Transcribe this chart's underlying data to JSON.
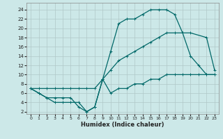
{
  "xlabel": "Humidex (Indice chaleur)",
  "bg_color": "#cce8e8",
  "grid_color": "#b0c8c8",
  "line_color": "#006868",
  "xlim": [
    -0.5,
    23.5
  ],
  "ylim": [
    1.5,
    25.5
  ],
  "xticks": [
    0,
    1,
    2,
    3,
    4,
    5,
    6,
    7,
    8,
    9,
    10,
    11,
    12,
    13,
    14,
    15,
    16,
    17,
    18,
    19,
    20,
    21,
    22,
    23
  ],
  "yticks": [
    2,
    4,
    6,
    8,
    10,
    12,
    14,
    16,
    18,
    20,
    22,
    24
  ],
  "line1_x": [
    0,
    1,
    2,
    3,
    4,
    5,
    6,
    7,
    8,
    9,
    10,
    11,
    12,
    13,
    14,
    15,
    16,
    17,
    18,
    19,
    20,
    21,
    22,
    23
  ],
  "line1_y": [
    7,
    6,
    5,
    5,
    5,
    5,
    3,
    2,
    3,
    9,
    15,
    21,
    22,
    22,
    23,
    24,
    24,
    24,
    23,
    19,
    14,
    12,
    10,
    10
  ],
  "line2_x": [
    0,
    1,
    2,
    3,
    4,
    5,
    6,
    7,
    8,
    9,
    10,
    11,
    12,
    13,
    14,
    15,
    16,
    17,
    18,
    19,
    20,
    22,
    23
  ],
  "line2_y": [
    7,
    7,
    7,
    7,
    7,
    7,
    7,
    7,
    7,
    9,
    11,
    13,
    14,
    15,
    16,
    17,
    18,
    19,
    19,
    19,
    19,
    18,
    11
  ],
  "line3_x": [
    0,
    1,
    2,
    3,
    4,
    5,
    6,
    7,
    8,
    9,
    10,
    11,
    12,
    13,
    14,
    15,
    16,
    17,
    18,
    19,
    20,
    21,
    22,
    23
  ],
  "line3_y": [
    7,
    6,
    5,
    4,
    4,
    4,
    4,
    2,
    3,
    9,
    6,
    7,
    7,
    8,
    8,
    9,
    9,
    10,
    10,
    10,
    10,
    10,
    10,
    10
  ]
}
